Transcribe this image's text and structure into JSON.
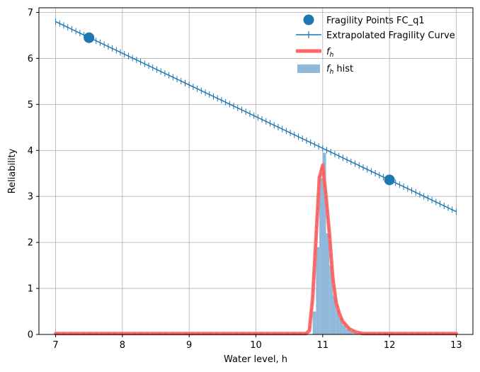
{
  "chart_data": {
    "type": "line",
    "title": "",
    "xlabel": "Water level, h",
    "ylabel": "Reliability",
    "xlim": [
      6.75,
      13.25
    ],
    "ylim": [
      0,
      7.1
    ],
    "x_ticks": [
      "7",
      "8",
      "9",
      "10",
      "11",
      "12",
      "13"
    ],
    "y_ticks": [
      "0",
      "1",
      "2",
      "3",
      "4",
      "5",
      "6",
      "7"
    ],
    "grid": true,
    "legend_position": "top-right",
    "colors": {
      "fragility": "#1f77b4",
      "fh": "#ff6666",
      "hist": "#8fb9da"
    },
    "series": [
      {
        "name": "Fragility Points FC_q1",
        "kind": "scatter",
        "x": [
          7.5,
          12.0
        ],
        "y": [
          6.45,
          3.36
        ]
      },
      {
        "name": "Extrapolated Fragility Curve",
        "kind": "line",
        "x_start": 7.0,
        "x_end": 13.0,
        "y_start": 6.8,
        "y_end": 2.67,
        "points": 100
      },
      {
        "name": "f_h",
        "kind": "line",
        "x": [
          7.0,
          10.75,
          10.8,
          10.85,
          10.9,
          10.95,
          11.0,
          11.05,
          11.1,
          11.15,
          11.2,
          11.25,
          11.3,
          11.4,
          11.5,
          11.6,
          11.8,
          12.0,
          13.0
        ],
        "y": [
          0.02,
          0.02,
          0.08,
          0.8,
          2.1,
          3.4,
          3.68,
          3.0,
          2.2,
          1.25,
          0.7,
          0.45,
          0.28,
          0.12,
          0.05,
          0.02,
          0.02,
          0.02,
          0.02
        ]
      },
      {
        "name": "f_h hist",
        "kind": "histogram",
        "bins": [
          {
            "x0": 10.85,
            "x1": 10.9,
            "h": 0.5
          },
          {
            "x0": 10.9,
            "x1": 10.95,
            "h": 1.9
          },
          {
            "x0": 10.95,
            "x1": 11.0,
            "h": 3.4
          },
          {
            "x0": 11.0,
            "x1": 11.05,
            "h": 3.95
          },
          {
            "x0": 11.05,
            "x1": 11.1,
            "h": 2.2
          },
          {
            "x0": 11.1,
            "x1": 11.15,
            "h": 1.5
          },
          {
            "x0": 11.15,
            "x1": 11.2,
            "h": 0.85
          },
          {
            "x0": 11.2,
            "x1": 11.25,
            "h": 0.55
          },
          {
            "x0": 11.25,
            "x1": 11.3,
            "h": 0.35
          },
          {
            "x0": 11.3,
            "x1": 11.35,
            "h": 0.2
          },
          {
            "x0": 11.35,
            "x1": 11.4,
            "h": 0.12
          },
          {
            "x0": 11.4,
            "x1": 11.45,
            "h": 0.08
          },
          {
            "x0": 11.45,
            "x1": 11.5,
            "h": 0.05
          }
        ]
      }
    ]
  }
}
